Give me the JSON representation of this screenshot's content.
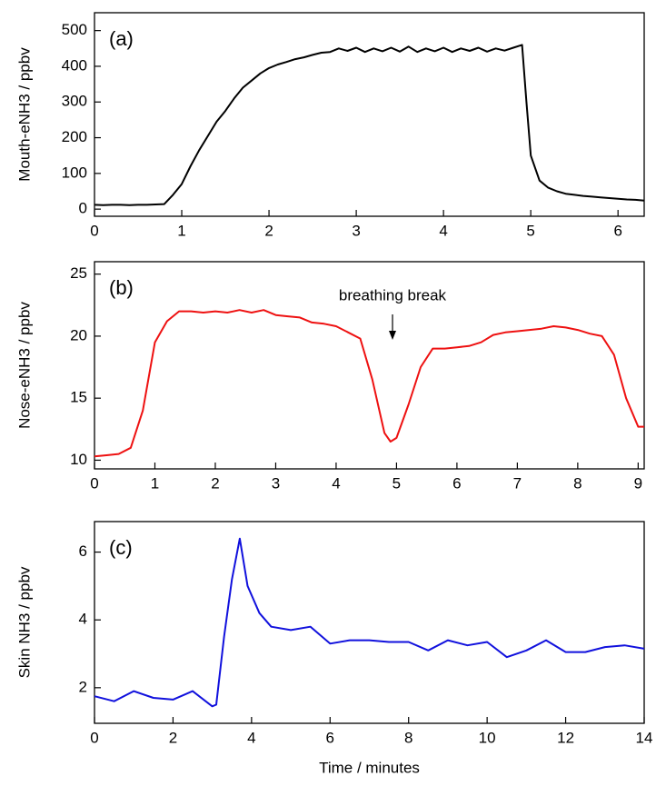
{
  "chart_data": [
    {
      "type": "line",
      "panel_label": "(a)",
      "ylabel": "Mouth-eNH3 / ppbv",
      "color": "#000000",
      "x": [
        0,
        0.1,
        0.2,
        0.3,
        0.4,
        0.5,
        0.6,
        0.7,
        0.8,
        0.9,
        1.0,
        1.1,
        1.2,
        1.3,
        1.4,
        1.5,
        1.6,
        1.7,
        1.8,
        1.9,
        2.0,
        2.1,
        2.2,
        2.3,
        2.4,
        2.5,
        2.6,
        2.7,
        2.8,
        2.9,
        3.0,
        3.1,
        3.2,
        3.3,
        3.4,
        3.5,
        3.6,
        3.7,
        3.8,
        3.9,
        4.0,
        4.1,
        4.2,
        4.3,
        4.4,
        4.5,
        4.6,
        4.7,
        4.8,
        4.9,
        4.95,
        5.0,
        5.1,
        5.2,
        5.3,
        5.4,
        5.5,
        5.6,
        5.7,
        5.8,
        5.9,
        6.0,
        6.1,
        6.2,
        6.3
      ],
      "values": [
        12,
        11,
        12,
        12,
        11,
        12,
        12,
        13,
        14,
        40,
        70,
        120,
        165,
        205,
        245,
        275,
        310,
        340,
        360,
        380,
        395,
        405,
        412,
        420,
        425,
        432,
        438,
        440,
        450,
        443,
        452,
        440,
        450,
        442,
        452,
        441,
        455,
        440,
        450,
        442,
        452,
        440,
        450,
        443,
        452,
        441,
        450,
        444,
        452,
        460,
        300,
        150,
        80,
        60,
        50,
        43,
        40,
        37,
        35,
        33,
        31,
        29,
        27,
        26,
        24
      ],
      "xlim": [
        0,
        6.3
      ],
      "xticks": [
        0,
        1,
        2,
        3,
        4,
        5,
        6
      ],
      "ylim": [
        -20,
        550
      ],
      "yticks": [
        0,
        100,
        200,
        300,
        400,
        500
      ]
    },
    {
      "type": "line",
      "panel_label": "(b)",
      "ylabel": "Nose-eNH3 / ppbv",
      "annotation": "breathing break",
      "color": "#ee1111",
      "x": [
        0,
        0.2,
        0.4,
        0.6,
        0.8,
        1.0,
        1.2,
        1.4,
        1.6,
        1.8,
        2.0,
        2.2,
        2.4,
        2.6,
        2.8,
        3.0,
        3.2,
        3.4,
        3.6,
        3.8,
        4.0,
        4.2,
        4.4,
        4.6,
        4.8,
        4.9,
        5.0,
        5.2,
        5.4,
        5.6,
        5.8,
        6.0,
        6.2,
        6.4,
        6.6,
        6.8,
        7.0,
        7.2,
        7.4,
        7.6,
        7.8,
        8.0,
        8.2,
        8.4,
        8.6,
        8.8,
        9.0,
        9.1
      ],
      "values": [
        10.3,
        10.4,
        10.5,
        11,
        14,
        19.5,
        21.2,
        22,
        22,
        21.9,
        22,
        21.9,
        22.1,
        21.9,
        22.1,
        21.7,
        21.6,
        21.5,
        21.1,
        21,
        20.8,
        20.3,
        19.8,
        16.5,
        12.2,
        11.5,
        11.8,
        14.5,
        17.5,
        19,
        19,
        19.1,
        19.2,
        19.5,
        20.1,
        20.3,
        20.4,
        20.5,
        20.6,
        20.8,
        20.7,
        20.5,
        20.2,
        20,
        18.5,
        15,
        12.7,
        12.7
      ],
      "xlim": [
        0,
        9.1
      ],
      "xticks": [
        0,
        1,
        2,
        3,
        4,
        5,
        6,
        7,
        8,
        9
      ],
      "ylim": [
        9.3,
        26
      ],
      "yticks": [
        10,
        15,
        20,
        25
      ]
    },
    {
      "type": "line",
      "panel_label": "(c)",
      "ylabel": "Skin NH3 / ppbv",
      "xlabel": "Time / minutes",
      "color": "#1111dd",
      "x": [
        0,
        0.5,
        1,
        1.5,
        2,
        2.5,
        3,
        3.1,
        3.3,
        3.5,
        3.7,
        3.9,
        4.2,
        4.5,
        5,
        5.5,
        6,
        6.5,
        7,
        7.5,
        8,
        8.5,
        9,
        9.5,
        10,
        10.5,
        11,
        11.5,
        12,
        12.5,
        13,
        13.5,
        14
      ],
      "values": [
        1.75,
        1.6,
        1.9,
        1.7,
        1.65,
        1.9,
        1.45,
        1.5,
        3.5,
        5.2,
        6.4,
        5.0,
        4.2,
        3.8,
        3.7,
        3.8,
        3.3,
        3.4,
        3.4,
        3.35,
        3.35,
        3.1,
        3.4,
        3.25,
        3.35,
        2.9,
        3.1,
        3.4,
        3.05,
        3.05,
        3.2,
        3.25,
        3.15
      ],
      "xlim": [
        0,
        14
      ],
      "xticks": [
        0,
        2,
        4,
        6,
        8,
        10,
        12,
        14
      ],
      "ylim": [
        0.95,
        6.9
      ],
      "yticks": [
        2,
        4,
        6
      ]
    }
  ]
}
